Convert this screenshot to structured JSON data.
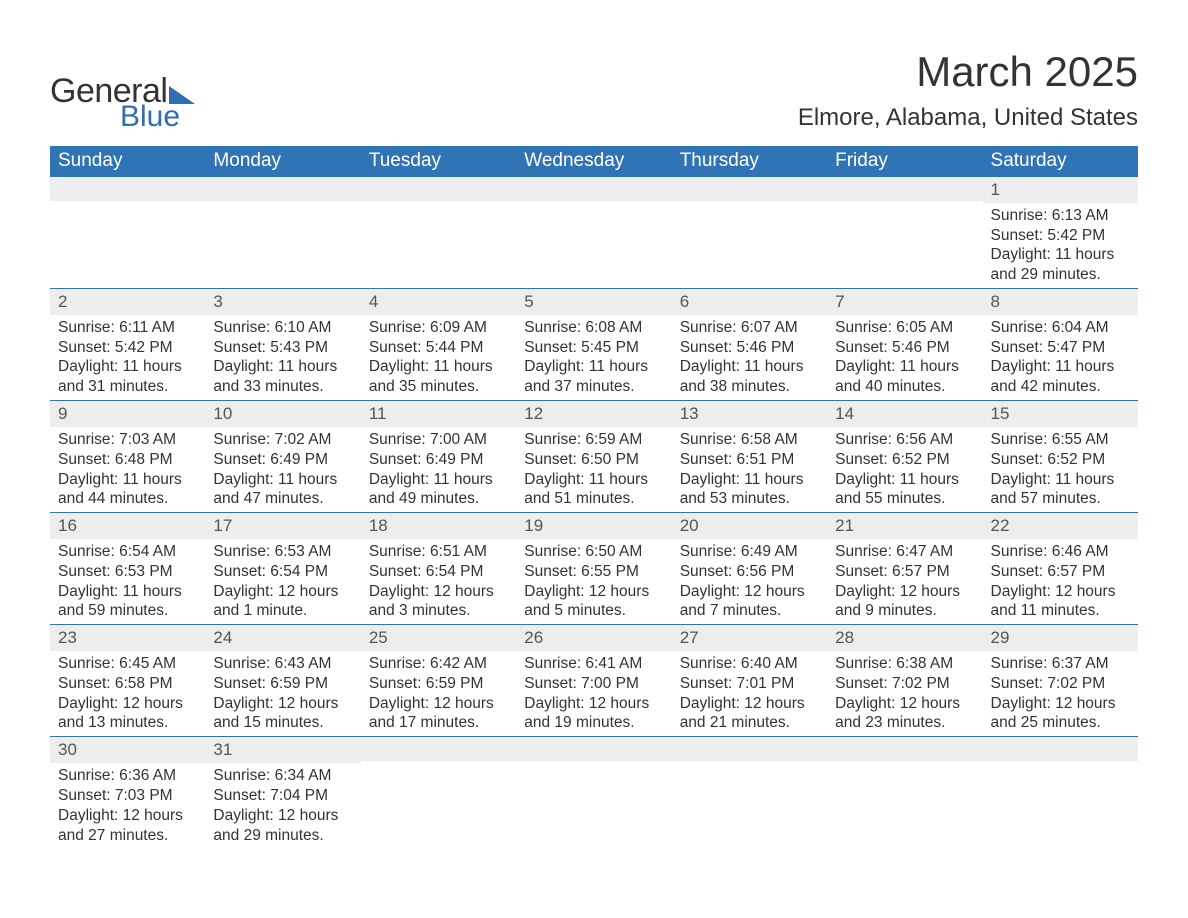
{
  "logo": {
    "text1": "General",
    "text2": "Blue"
  },
  "title": "March 2025",
  "location": "Elmore, Alabama, United States",
  "colors": {
    "header_bg": "#3174b6",
    "header_fg": "#ffffff",
    "daynum_bg": "#ededed",
    "row_border": "#3174b6",
    "text": "#333333",
    "logo_accent": "#2f6eb0"
  },
  "typography": {
    "title_fontsize": 42,
    "location_fontsize": 24,
    "header_fontsize": 19,
    "body_fontsize": 15.5,
    "daynum_fontsize": 17
  },
  "day_headers": [
    "Sunday",
    "Monday",
    "Tuesday",
    "Wednesday",
    "Thursday",
    "Friday",
    "Saturday"
  ],
  "weeks": [
    [
      null,
      null,
      null,
      null,
      null,
      null,
      {
        "n": "1",
        "sr": "Sunrise: 6:13 AM",
        "ss": "Sunset: 5:42 PM",
        "d1": "Daylight: 11 hours",
        "d2": "and 29 minutes."
      }
    ],
    [
      {
        "n": "2",
        "sr": "Sunrise: 6:11 AM",
        "ss": "Sunset: 5:42 PM",
        "d1": "Daylight: 11 hours",
        "d2": "and 31 minutes."
      },
      {
        "n": "3",
        "sr": "Sunrise: 6:10 AM",
        "ss": "Sunset: 5:43 PM",
        "d1": "Daylight: 11 hours",
        "d2": "and 33 minutes."
      },
      {
        "n": "4",
        "sr": "Sunrise: 6:09 AM",
        "ss": "Sunset: 5:44 PM",
        "d1": "Daylight: 11 hours",
        "d2": "and 35 minutes."
      },
      {
        "n": "5",
        "sr": "Sunrise: 6:08 AM",
        "ss": "Sunset: 5:45 PM",
        "d1": "Daylight: 11 hours",
        "d2": "and 37 minutes."
      },
      {
        "n": "6",
        "sr": "Sunrise: 6:07 AM",
        "ss": "Sunset: 5:46 PM",
        "d1": "Daylight: 11 hours",
        "d2": "and 38 minutes."
      },
      {
        "n": "7",
        "sr": "Sunrise: 6:05 AM",
        "ss": "Sunset: 5:46 PM",
        "d1": "Daylight: 11 hours",
        "d2": "and 40 minutes."
      },
      {
        "n": "8",
        "sr": "Sunrise: 6:04 AM",
        "ss": "Sunset: 5:47 PM",
        "d1": "Daylight: 11 hours",
        "d2": "and 42 minutes."
      }
    ],
    [
      {
        "n": "9",
        "sr": "Sunrise: 7:03 AM",
        "ss": "Sunset: 6:48 PM",
        "d1": "Daylight: 11 hours",
        "d2": "and 44 minutes."
      },
      {
        "n": "10",
        "sr": "Sunrise: 7:02 AM",
        "ss": "Sunset: 6:49 PM",
        "d1": "Daylight: 11 hours",
        "d2": "and 47 minutes."
      },
      {
        "n": "11",
        "sr": "Sunrise: 7:00 AM",
        "ss": "Sunset: 6:49 PM",
        "d1": "Daylight: 11 hours",
        "d2": "and 49 minutes."
      },
      {
        "n": "12",
        "sr": "Sunrise: 6:59 AM",
        "ss": "Sunset: 6:50 PM",
        "d1": "Daylight: 11 hours",
        "d2": "and 51 minutes."
      },
      {
        "n": "13",
        "sr": "Sunrise: 6:58 AM",
        "ss": "Sunset: 6:51 PM",
        "d1": "Daylight: 11 hours",
        "d2": "and 53 minutes."
      },
      {
        "n": "14",
        "sr": "Sunrise: 6:56 AM",
        "ss": "Sunset: 6:52 PM",
        "d1": "Daylight: 11 hours",
        "d2": "and 55 minutes."
      },
      {
        "n": "15",
        "sr": "Sunrise: 6:55 AM",
        "ss": "Sunset: 6:52 PM",
        "d1": "Daylight: 11 hours",
        "d2": "and 57 minutes."
      }
    ],
    [
      {
        "n": "16",
        "sr": "Sunrise: 6:54 AM",
        "ss": "Sunset: 6:53 PM",
        "d1": "Daylight: 11 hours",
        "d2": "and 59 minutes."
      },
      {
        "n": "17",
        "sr": "Sunrise: 6:53 AM",
        "ss": "Sunset: 6:54 PM",
        "d1": "Daylight: 12 hours",
        "d2": "and 1 minute."
      },
      {
        "n": "18",
        "sr": "Sunrise: 6:51 AM",
        "ss": "Sunset: 6:54 PM",
        "d1": "Daylight: 12 hours",
        "d2": "and 3 minutes."
      },
      {
        "n": "19",
        "sr": "Sunrise: 6:50 AM",
        "ss": "Sunset: 6:55 PM",
        "d1": "Daylight: 12 hours",
        "d2": "and 5 minutes."
      },
      {
        "n": "20",
        "sr": "Sunrise: 6:49 AM",
        "ss": "Sunset: 6:56 PM",
        "d1": "Daylight: 12 hours",
        "d2": "and 7 minutes."
      },
      {
        "n": "21",
        "sr": "Sunrise: 6:47 AM",
        "ss": "Sunset: 6:57 PM",
        "d1": "Daylight: 12 hours",
        "d2": "and 9 minutes."
      },
      {
        "n": "22",
        "sr": "Sunrise: 6:46 AM",
        "ss": "Sunset: 6:57 PM",
        "d1": "Daylight: 12 hours",
        "d2": "and 11 minutes."
      }
    ],
    [
      {
        "n": "23",
        "sr": "Sunrise: 6:45 AM",
        "ss": "Sunset: 6:58 PM",
        "d1": "Daylight: 12 hours",
        "d2": "and 13 minutes."
      },
      {
        "n": "24",
        "sr": "Sunrise: 6:43 AM",
        "ss": "Sunset: 6:59 PM",
        "d1": "Daylight: 12 hours",
        "d2": "and 15 minutes."
      },
      {
        "n": "25",
        "sr": "Sunrise: 6:42 AM",
        "ss": "Sunset: 6:59 PM",
        "d1": "Daylight: 12 hours",
        "d2": "and 17 minutes."
      },
      {
        "n": "26",
        "sr": "Sunrise: 6:41 AM",
        "ss": "Sunset: 7:00 PM",
        "d1": "Daylight: 12 hours",
        "d2": "and 19 minutes."
      },
      {
        "n": "27",
        "sr": "Sunrise: 6:40 AM",
        "ss": "Sunset: 7:01 PM",
        "d1": "Daylight: 12 hours",
        "d2": "and 21 minutes."
      },
      {
        "n": "28",
        "sr": "Sunrise: 6:38 AM",
        "ss": "Sunset: 7:02 PM",
        "d1": "Daylight: 12 hours",
        "d2": "and 23 minutes."
      },
      {
        "n": "29",
        "sr": "Sunrise: 6:37 AM",
        "ss": "Sunset: 7:02 PM",
        "d1": "Daylight: 12 hours",
        "d2": "and 25 minutes."
      }
    ],
    [
      {
        "n": "30",
        "sr": "Sunrise: 6:36 AM",
        "ss": "Sunset: 7:03 PM",
        "d1": "Daylight: 12 hours",
        "d2": "and 27 minutes."
      },
      {
        "n": "31",
        "sr": "Sunrise: 6:34 AM",
        "ss": "Sunset: 7:04 PM",
        "d1": "Daylight: 12 hours",
        "d2": "and 29 minutes."
      },
      null,
      null,
      null,
      null,
      null
    ]
  ]
}
